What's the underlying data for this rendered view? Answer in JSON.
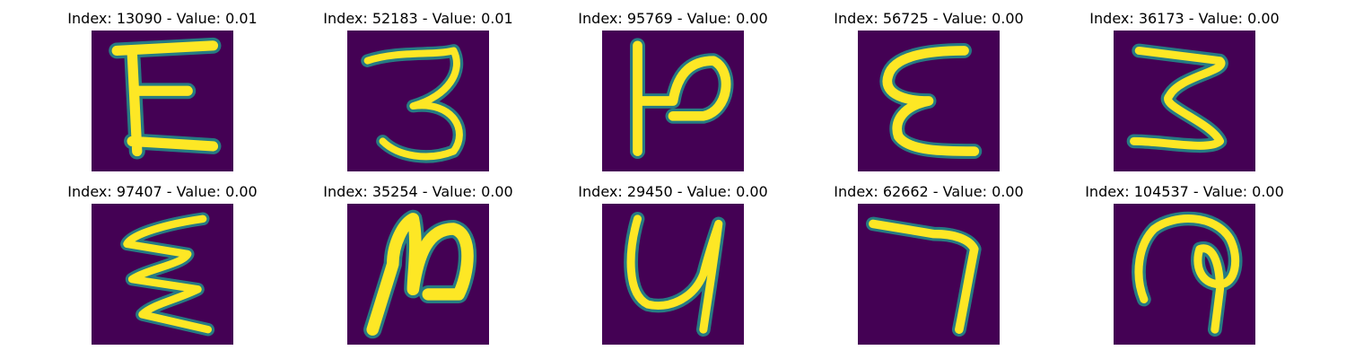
{
  "figure": {
    "colormap": "viridis",
    "background_color": "#440154",
    "stroke_color": "#fde725",
    "edge_color": "#21918c",
    "panels": [
      {
        "index": "13090",
        "value": "0.01",
        "title": "Index: 13090 - Value: 0.01"
      },
      {
        "index": "52183",
        "value": "0.01",
        "title": "Index: 52183 - Value: 0.01"
      },
      {
        "index": "95769",
        "value": "0.00",
        "title": "Index: 95769 - Value: 0.00"
      },
      {
        "index": "56725",
        "value": "0.00",
        "title": "Index: 56725 - Value: 0.00"
      },
      {
        "index": "36173",
        "value": "0.00",
        "title": "Index: 36173 - Value: 0.00"
      },
      {
        "index": "97407",
        "value": "0.00",
        "title": "Index: 97407 - Value: 0.00"
      },
      {
        "index": "35254",
        "value": "0.00",
        "title": "Index: 35254 - Value: 0.00"
      },
      {
        "index": "29450",
        "value": "0.00",
        "title": "Index: 29450 - Value: 0.00"
      },
      {
        "index": "62662",
        "value": "0.00",
        "title": "Index: 62662 - Value: 0.00"
      },
      {
        "index": "104537",
        "value": "0.00",
        "title": "Index: 104537 - Value: 0.00"
      }
    ]
  }
}
